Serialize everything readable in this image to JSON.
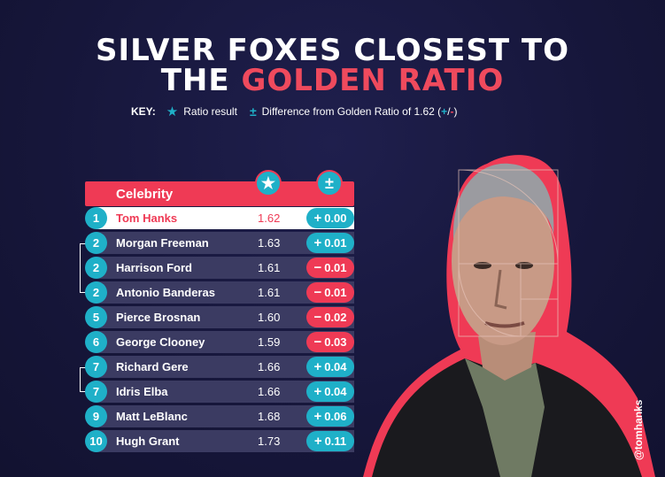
{
  "title": {
    "line1": "SILVER FOXES CLOSEST TO",
    "line2_plain": "THE ",
    "line2_accent": "GOLDEN RATIO"
  },
  "key": {
    "label": "KEY:",
    "star_icon": "star-icon",
    "ratio_label": "Ratio result",
    "pm_icon": "plus-minus-icon",
    "difference_label": "Difference from Golden Ratio of 1.62 (",
    "plus": "+",
    "slash": "/",
    "minus": "-",
    "close": ")"
  },
  "table": {
    "header": "Celebrity",
    "rows": [
      {
        "rank": "1",
        "name": "Tom Hanks",
        "ratio": "1.62",
        "sign": "+",
        "diff": "0.00",
        "type": "pos"
      },
      {
        "rank": "2",
        "name": "Morgan Freeman",
        "ratio": "1.63",
        "sign": "+",
        "diff": "0.01",
        "type": "pos"
      },
      {
        "rank": "2",
        "name": "Harrison Ford",
        "ratio": "1.61",
        "sign": "−",
        "diff": "0.01",
        "type": "neg"
      },
      {
        "rank": "2",
        "name": "Antonio Banderas",
        "ratio": "1.61",
        "sign": "−",
        "diff": "0.01",
        "type": "neg"
      },
      {
        "rank": "5",
        "name": "Pierce Brosnan",
        "ratio": "1.60",
        "sign": "−",
        "diff": "0.02",
        "type": "neg"
      },
      {
        "rank": "6",
        "name": "George Clooney",
        "ratio": "1.59",
        "sign": "−",
        "diff": "0.03",
        "type": "neg"
      },
      {
        "rank": "7",
        "name": "Richard Gere",
        "ratio": "1.66",
        "sign": "+",
        "diff": "0.04",
        "type": "pos"
      },
      {
        "rank": "7",
        "name": "Idris Elba",
        "ratio": "1.66",
        "sign": "+",
        "diff": "0.04",
        "type": "pos"
      },
      {
        "rank": "9",
        "name": "Matt LeBlanc",
        "ratio": "1.68",
        "sign": "+",
        "diff": "0.06",
        "type": "pos"
      },
      {
        "rank": "10",
        "name": "Hugh Grant",
        "ratio": "1.73",
        "sign": "+",
        "diff": "0.11",
        "type": "pos"
      }
    ]
  },
  "handle": "@tomhanks",
  "colors": {
    "background": "#16163a",
    "accent_red": "#ef3a55",
    "accent_teal": "#1fb0c8",
    "row_bg": "#3b3b62"
  }
}
